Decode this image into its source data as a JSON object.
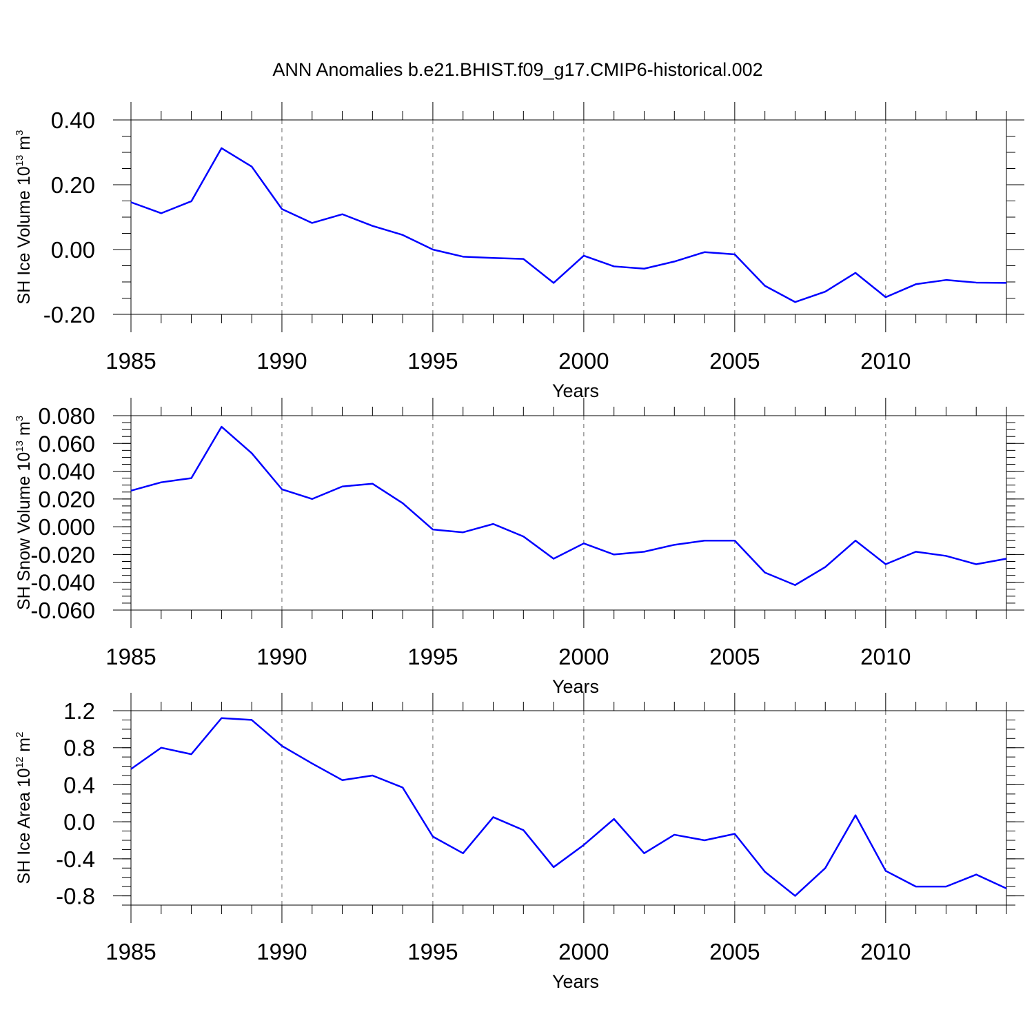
{
  "chart_data": [
    {
      "type": "line",
      "title": "ANN Anomalies b.e21.BHIST.f09_g17.CMIP6-historical.002",
      "xlabel": "Years",
      "ylabel": {
        "prefix": "SH Ice Volume 10",
        "exp": "13",
        "unit": " m",
        "unit_exp": "3"
      },
      "xlim": [
        1985,
        2014
      ],
      "ylim": [
        -0.2,
        0.4
      ],
      "xticks": [
        1985,
        1990,
        1995,
        2000,
        2005,
        2010
      ],
      "yticks": [
        -0.2,
        0.0,
        0.2,
        0.4
      ],
      "ytick_labels": [
        "-0.20",
        "0.00",
        "0.20",
        "0.40"
      ],
      "yminor": 0.05,
      "line_color": "#0000ff",
      "grid": "dashed vertical at major x ticks",
      "series": [
        {
          "name": "SH Ice Volume",
          "x": [
            1985,
            1986,
            1987,
            1988,
            1989,
            1990,
            1991,
            1992,
            1993,
            1994,
            1995,
            1996,
            1997,
            1998,
            1999,
            2000,
            2001,
            2002,
            2003,
            2004,
            2005,
            2006,
            2007,
            2008,
            2009,
            2010,
            2011,
            2012,
            2013,
            2014
          ],
          "values": [
            0.146,
            0.112,
            0.149,
            0.313,
            0.256,
            0.125,
            0.082,
            0.109,
            0.073,
            0.045,
            0.0,
            -0.022,
            -0.026,
            -0.029,
            -0.103,
            -0.019,
            -0.052,
            -0.059,
            -0.037,
            -0.008,
            -0.015,
            -0.112,
            -0.162,
            -0.13,
            -0.072,
            -0.147,
            -0.107,
            -0.094,
            -0.102,
            -0.103
          ]
        }
      ]
    },
    {
      "type": "line",
      "title": "",
      "xlabel": "Years",
      "ylabel": {
        "prefix": "SH Snow Volume 10",
        "exp": "13",
        "unit": " m",
        "unit_exp": "3"
      },
      "xlim": [
        1985,
        2014
      ],
      "ylim": [
        -0.06,
        0.08
      ],
      "xticks": [
        1985,
        1990,
        1995,
        2000,
        2005,
        2010
      ],
      "yticks": [
        -0.06,
        -0.04,
        -0.02,
        0.0,
        0.02,
        0.04,
        0.06,
        0.08
      ],
      "ytick_labels": [
        "-0.060",
        "-0.040",
        "-0.020",
        "0.000",
        "0.020",
        "0.040",
        "0.060",
        "0.080"
      ],
      "yminor": 0.005,
      "line_color": "#0000ff",
      "grid": "dashed vertical at major x ticks",
      "series": [
        {
          "name": "SH Snow Volume",
          "x": [
            1985,
            1986,
            1987,
            1988,
            1989,
            1990,
            1991,
            1992,
            1993,
            1994,
            1995,
            1996,
            1997,
            1998,
            1999,
            2000,
            2001,
            2002,
            2003,
            2004,
            2005,
            2006,
            2007,
            2008,
            2009,
            2010,
            2011,
            2012,
            2013,
            2014
          ],
          "values": [
            0.026,
            0.032,
            0.035,
            0.072,
            0.053,
            0.027,
            0.02,
            0.029,
            0.031,
            0.017,
            -0.002,
            -0.004,
            0.002,
            -0.007,
            -0.023,
            -0.012,
            -0.02,
            -0.018,
            -0.013,
            -0.01,
            -0.01,
            -0.033,
            -0.042,
            -0.029,
            -0.01,
            -0.027,
            -0.018,
            -0.021,
            -0.027,
            -0.023
          ]
        }
      ]
    },
    {
      "type": "line",
      "title": "",
      "xlabel": "Years",
      "ylabel": {
        "prefix": "SH Ice Area 10",
        "exp": "12",
        "unit": " m",
        "unit_exp": "2"
      },
      "xlim": [
        1985,
        2014
      ],
      "ylim": [
        -0.9,
        1.2
      ],
      "xticks": [
        1985,
        1990,
        1995,
        2000,
        2005,
        2010
      ],
      "yticks": [
        -0.8,
        -0.4,
        0.0,
        0.4,
        0.8,
        1.2
      ],
      "ytick_labels": [
        "-0.8",
        "-0.4",
        "0.0",
        "0.4",
        "0.8",
        "1.2"
      ],
      "yminor": 0.1,
      "line_color": "#0000ff",
      "grid": "dashed vertical at major x ticks",
      "series": [
        {
          "name": "SH Ice Area",
          "x": [
            1985,
            1986,
            1987,
            1988,
            1989,
            1990,
            1991,
            1992,
            1993,
            1994,
            1995,
            1996,
            1997,
            1998,
            1999,
            2000,
            2001,
            2002,
            2003,
            2004,
            2005,
            2006,
            2007,
            2008,
            2009,
            2010,
            2011,
            2012,
            2013,
            2014
          ],
          "values": [
            0.57,
            0.8,
            0.73,
            1.12,
            1.1,
            0.82,
            0.63,
            0.45,
            0.5,
            0.37,
            -0.16,
            -0.34,
            0.05,
            -0.09,
            -0.49,
            -0.25,
            0.03,
            -0.34,
            -0.14,
            -0.2,
            -0.13,
            -0.54,
            -0.8,
            -0.5,
            0.07,
            -0.53,
            -0.7,
            -0.7,
            -0.57,
            -0.72
          ]
        }
      ]
    }
  ]
}
